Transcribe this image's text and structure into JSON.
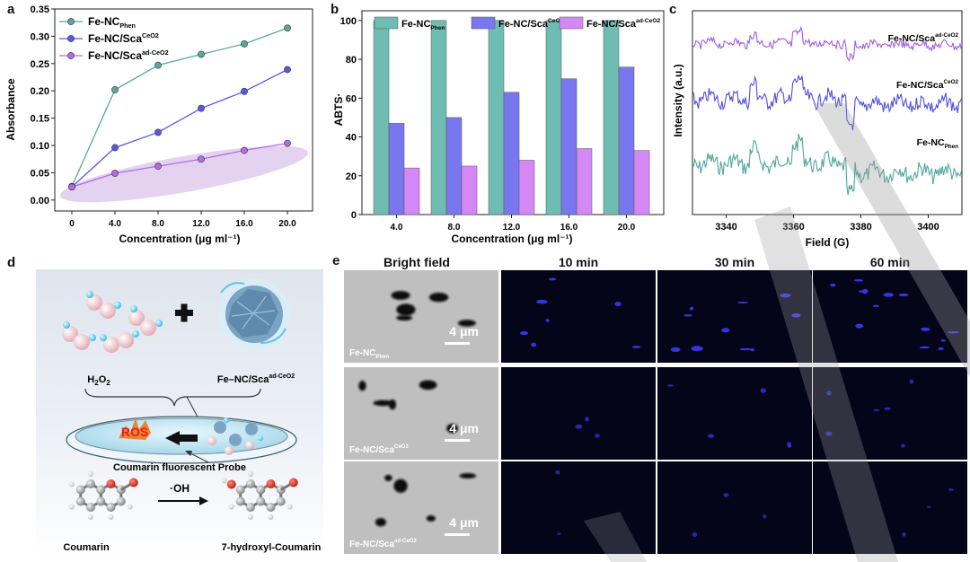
{
  "panels": {
    "a": "a",
    "b": "b",
    "c": "c",
    "d": "d",
    "e": "e"
  },
  "colors": {
    "phen": "#5aa79b",
    "ceo2": "#5b57e6",
    "adceo2": "#b46ae6",
    "ellipse": "#d9c6ec",
    "dark_bg": "#05051a"
  },
  "chart_data": [
    {
      "id": "a",
      "type": "line",
      "x": [
        0,
        4.0,
        8.0,
        12.0,
        16.0,
        20.0
      ],
      "x_ticks": [
        "0",
        "4.0",
        "8.0",
        "12.0",
        "16.0",
        "20.0"
      ],
      "xlabel": "Concentration (μg ml⁻¹)",
      "ylabel": "Absorbance",
      "ylim": [
        -0.02,
        0.35
      ],
      "y_ticks": [
        "0.00",
        "0.05",
        "0.10",
        "0.15",
        "0.20",
        "0.25",
        "0.30",
        "0.35"
      ],
      "series": [
        {
          "name": "Fe-NC",
          "sup": "",
          "sub": "Phen",
          "color": "#5aa79b",
          "values": [
            0.025,
            0.202,
            0.247,
            0.267,
            0.286,
            0.315
          ]
        },
        {
          "name": "Fe-NC/Sca",
          "sup": "CeO2",
          "sub": "",
          "color": "#5b57e6",
          "values": [
            0.024,
            0.096,
            0.124,
            0.168,
            0.199,
            0.239
          ]
        },
        {
          "name": "Fe-NC/Sca",
          "sup": "ad-CeO2",
          "sub": "",
          "color": "#b46ae6",
          "values": [
            0.024,
            0.049,
            0.062,
            0.075,
            0.091,
            0.104
          ]
        }
      ]
    },
    {
      "id": "b",
      "type": "bar",
      "categories": [
        "4.0",
        "8.0",
        "12.0",
        "16.0",
        "20.0"
      ],
      "xlabel": "Concentration (μg ml⁻¹)",
      "ylabel": "ABTS·",
      "ylim": [
        0,
        105
      ],
      "y_ticks": [
        "0",
        "20",
        "40",
        "60",
        "80",
        "100"
      ],
      "series": [
        {
          "name": "Fe-NC",
          "sup": "",
          "sub": "Phen",
          "color": "#6fbdb2",
          "values": [
            100,
            100,
            100,
            100,
            100
          ]
        },
        {
          "name": "Fe-NC/Sca",
          "sup": "CeO2",
          "sub": "",
          "color": "#7977f0",
          "values": [
            47,
            50,
            63,
            70,
            76
          ]
        },
        {
          "name": "Fe-NC/Sca",
          "sup": "ad-CeO2",
          "sub": "",
          "color": "#d488f5",
          "values": [
            24,
            25,
            28,
            34,
            33
          ]
        }
      ]
    },
    {
      "id": "c",
      "type": "line",
      "xlabel": "Field (G)",
      "ylabel": "Intensity (a.u.)",
      "xlim": [
        3330,
        3410
      ],
      "x_ticks": [
        "3340",
        "3360",
        "3380",
        "3400"
      ],
      "series": [
        {
          "name": "Fe-NC/Sca",
          "sup": "ad-CeO2",
          "sub": "",
          "color": "#a65ce0",
          "offset": 2.0,
          "amp": 0.25
        },
        {
          "name": "Fe-NC/Sca",
          "sup": "CeO2",
          "sub": "",
          "color": "#4f4fe0",
          "offset": 1.0,
          "amp": 0.55
        },
        {
          "name": "Fe-NC",
          "sup": "",
          "sub": "Phen",
          "color": "#4fa79b",
          "offset": 0.0,
          "amp": 0.8
        }
      ]
    }
  ],
  "panel_d": {
    "h2o2": "H",
    "h2o2_sub1": "2",
    "h2o2_o": "O",
    "h2o2_sub2": "2",
    "material": "Fe–NC/Sca",
    "material_sup": "ad-CeO2",
    "ros": "ROS",
    "probe": "Coumarin fluorescent Probe",
    "oh": "·OH",
    "coumarin": "Coumarin",
    "product": "7-hydroxyl-Coumarin"
  },
  "panel_e": {
    "columns": [
      "Bright field",
      "10 min",
      "30 min",
      "60 min"
    ],
    "scale_bar": "4 μm",
    "rows": [
      {
        "name": "Fe-NC",
        "sup": "",
        "sub": "Phen"
      },
      {
        "name": "Fe-NC/Sca",
        "sup": "CeO2",
        "sub": ""
      },
      {
        "name": "Fe-NC/Sca",
        "sup": "ad-CeO2",
        "sub": ""
      }
    ]
  }
}
